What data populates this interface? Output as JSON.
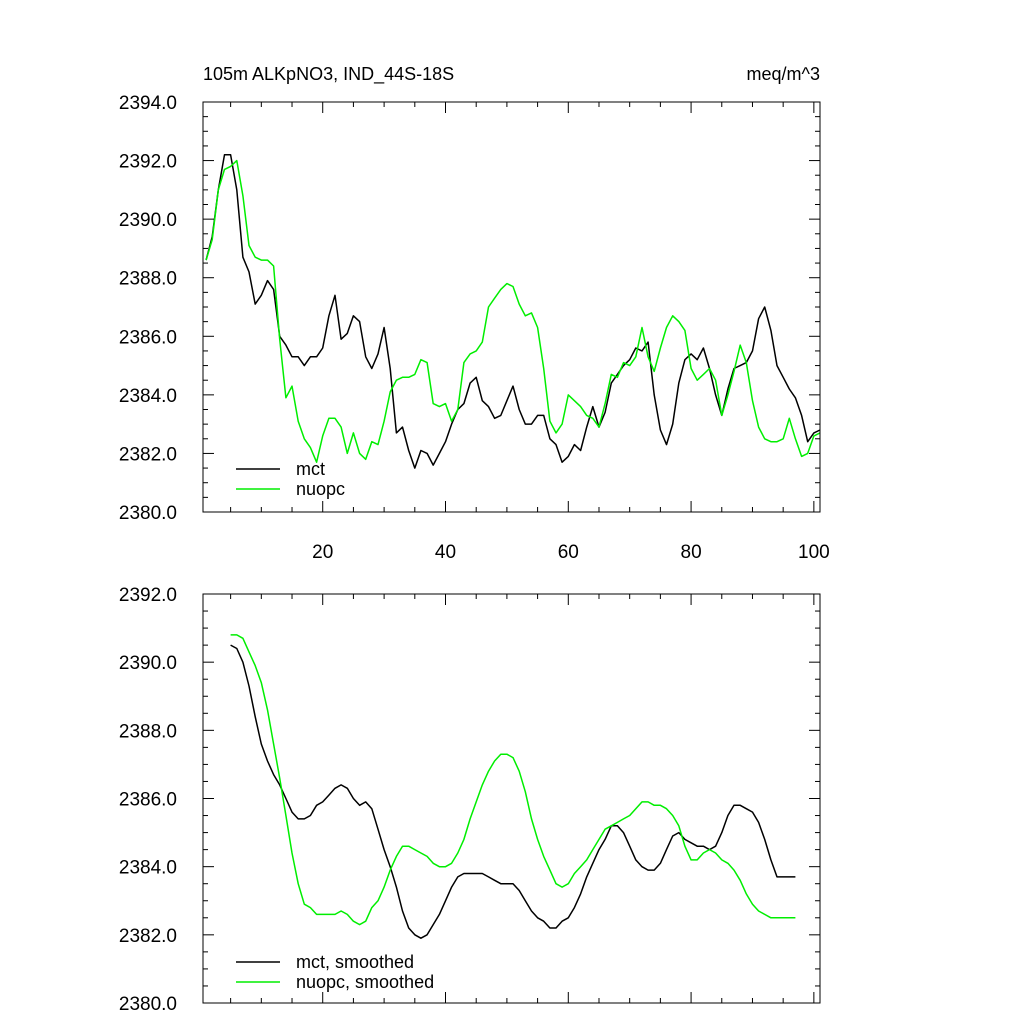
{
  "chart_data": [
    {
      "type": "line",
      "title_left": "105m ALKpNO3, IND_44S-18S",
      "title_right": "meq/m^3",
      "xlabel": "",
      "ylabel": "",
      "xlim": [
        0.5,
        101
      ],
      "ylim": [
        2380,
        2394
      ],
      "yticks": [
        2380,
        2382,
        2384,
        2386,
        2388,
        2390,
        2392,
        2394
      ],
      "ytick_labels": [
        "2380.0",
        "2382.0",
        "2384.0",
        "2386.0",
        "2388.0",
        "2390.0",
        "2392.0",
        "2394.0"
      ],
      "xticks": [
        20,
        40,
        60,
        80,
        100
      ],
      "xtick_labels": [
        "20",
        "40",
        "60",
        "80",
        "100"
      ],
      "legend_position": "bottom-left",
      "series": [
        {
          "name": "mct",
          "color": "#000000",
          "x": [
            1,
            2,
            3,
            4,
            5,
            6,
            7,
            8,
            9,
            10,
            11,
            12,
            13,
            14,
            15,
            16,
            17,
            18,
            19,
            20,
            21,
            22,
            23,
            24,
            25,
            26,
            27,
            28,
            29,
            30,
            31,
            32,
            33,
            34,
            35,
            36,
            37,
            38,
            39,
            40,
            41,
            42,
            43,
            44,
            45,
            46,
            47,
            48,
            49,
            50,
            51,
            52,
            53,
            54,
            55,
            56,
            57,
            58,
            59,
            60,
            61,
            62,
            63,
            64,
            65,
            66,
            67,
            68,
            69,
            70,
            71,
            72,
            73,
            74,
            75,
            76,
            77,
            78,
            79,
            80,
            81,
            82,
            83,
            84,
            85,
            86,
            87,
            88,
            89,
            90,
            91,
            92,
            93,
            94,
            95,
            96,
            97,
            98,
            99,
            100,
            101
          ],
          "values": [
            2388.6,
            2389.4,
            2391.0,
            2392.2,
            2392.2,
            2391.0,
            2388.7,
            2388.2,
            2387.1,
            2387.4,
            2387.9,
            2387.6,
            2386.0,
            2385.7,
            2385.3,
            2385.3,
            2385.0,
            2385.3,
            2385.3,
            2385.6,
            2386.7,
            2387.4,
            2385.9,
            2386.1,
            2386.7,
            2386.5,
            2385.3,
            2384.9,
            2385.4,
            2386.3,
            2384.9,
            2382.7,
            2382.9,
            2382.1,
            2381.5,
            2382.1,
            2382.0,
            2381.6,
            2382.0,
            2382.4,
            2383.0,
            2383.5,
            2383.7,
            2384.4,
            2384.6,
            2383.8,
            2383.6,
            2383.2,
            2383.3,
            2383.8,
            2384.3,
            2383.5,
            2383.0,
            2383.0,
            2383.3,
            2383.3,
            2382.5,
            2382.3,
            2381.7,
            2381.9,
            2382.3,
            2382.1,
            2382.9,
            2383.6,
            2382.9,
            2383.4,
            2384.4,
            2384.7,
            2385.0,
            2385.2,
            2385.6,
            2385.5,
            2385.8,
            2384.0,
            2382.8,
            2382.3,
            2383.0,
            2384.4,
            2385.2,
            2385.4,
            2385.2,
            2385.6,
            2384.9,
            2384.0,
            2383.3,
            2384.2,
            2384.9,
            2385.0,
            2385.1,
            2385.5,
            2386.6,
            2387.0,
            2386.2,
            2385.0,
            2384.6,
            2384.2,
            2383.9,
            2383.3,
            2382.4,
            2382.7,
            2382.8
          ]
        },
        {
          "name": "nuopc",
          "color": "#00ee00",
          "x": [
            1,
            2,
            3,
            4,
            5,
            6,
            7,
            8,
            9,
            10,
            11,
            12,
            13,
            14,
            15,
            16,
            17,
            18,
            19,
            20,
            21,
            22,
            23,
            24,
            25,
            26,
            27,
            28,
            29,
            30,
            31,
            32,
            33,
            34,
            35,
            36,
            37,
            38,
            39,
            40,
            41,
            42,
            43,
            44,
            45,
            46,
            47,
            48,
            49,
            50,
            51,
            52,
            53,
            54,
            55,
            56,
            57,
            58,
            59,
            60,
            61,
            62,
            63,
            64,
            65,
            66,
            67,
            68,
            69,
            70,
            71,
            72,
            73,
            74,
            75,
            76,
            77,
            78,
            79,
            80,
            81,
            82,
            83,
            84,
            85,
            86,
            87,
            88,
            89,
            90,
            91,
            92,
            93,
            94,
            95,
            96,
            97,
            98,
            99,
            100,
            101
          ],
          "values": [
            2388.6,
            2389.3,
            2391.0,
            2391.7,
            2391.8,
            2392.0,
            2390.8,
            2389.1,
            2388.7,
            2388.6,
            2388.6,
            2388.4,
            2385.9,
            2383.9,
            2384.3,
            2383.1,
            2382.5,
            2382.2,
            2381.7,
            2382.6,
            2383.2,
            2383.2,
            2382.9,
            2382.0,
            2382.7,
            2382.0,
            2381.8,
            2382.4,
            2382.3,
            2383.1,
            2384.1,
            2384.5,
            2384.6,
            2384.6,
            2384.7,
            2385.2,
            2385.1,
            2383.7,
            2383.6,
            2383.7,
            2383.1,
            2383.5,
            2385.1,
            2385.4,
            2385.5,
            2385.8,
            2387.0,
            2387.3,
            2387.6,
            2387.8,
            2387.7,
            2387.1,
            2386.7,
            2386.8,
            2386.3,
            2384.9,
            2383.1,
            2382.7,
            2383.0,
            2384.0,
            2383.8,
            2383.6,
            2383.3,
            2383.2,
            2382.9,
            2383.7,
            2384.7,
            2384.6,
            2385.1,
            2385.0,
            2385.3,
            2386.3,
            2385.3,
            2384.8,
            2385.6,
            2386.3,
            2386.7,
            2386.5,
            2386.2,
            2384.9,
            2384.5,
            2384.7,
            2384.9,
            2384.5,
            2383.3,
            2384.0,
            2384.8,
            2385.7,
            2385.1,
            2383.8,
            2382.9,
            2382.5,
            2382.4,
            2382.4,
            2382.5,
            2383.2,
            2382.5,
            2381.9,
            2382.0,
            2382.6,
            2382.7
          ]
        }
      ]
    },
    {
      "type": "line",
      "xlim": [
        0.5,
        101
      ],
      "ylim": [
        2380,
        2392
      ],
      "yticks": [
        2380,
        2382,
        2384,
        2386,
        2388,
        2390,
        2392
      ],
      "ytick_labels": [
        "2380.0",
        "2382.0",
        "2384.0",
        "2386.0",
        "2388.0",
        "2390.0",
        "2392.0"
      ],
      "xticks": [
        20,
        40,
        60,
        80,
        100
      ],
      "legend_position": "bottom-left",
      "series": [
        {
          "name": "mct, smoothed",
          "color": "#000000",
          "x": [
            5,
            6,
            7,
            8,
            9,
            10,
            11,
            12,
            13,
            14,
            15,
            16,
            17,
            18,
            19,
            20,
            21,
            22,
            23,
            24,
            25,
            26,
            27,
            28,
            29,
            30,
            31,
            32,
            33,
            34,
            35,
            36,
            37,
            38,
            39,
            40,
            41,
            42,
            43,
            44,
            45,
            46,
            47,
            48,
            49,
            50,
            51,
            52,
            53,
            54,
            55,
            56,
            57,
            58,
            59,
            60,
            61,
            62,
            63,
            64,
            65,
            66,
            67,
            68,
            69,
            70,
            71,
            72,
            73,
            74,
            75,
            76,
            77,
            78,
            79,
            80,
            81,
            82,
            83,
            84,
            85,
            86,
            87,
            88,
            89,
            90,
            91,
            92,
            93,
            94,
            95,
            96,
            97
          ],
          "values": [
            2390.5,
            2390.4,
            2390.0,
            2389.3,
            2388.4,
            2387.6,
            2387.1,
            2386.7,
            2386.4,
            2386.0,
            2385.6,
            2385.4,
            2385.4,
            2385.5,
            2385.8,
            2385.9,
            2386.1,
            2386.3,
            2386.4,
            2386.3,
            2386.0,
            2385.8,
            2385.9,
            2385.7,
            2385.1,
            2384.5,
            2384.0,
            2383.4,
            2382.7,
            2382.2,
            2382.0,
            2381.9,
            2382.0,
            2382.3,
            2382.6,
            2383.0,
            2383.4,
            2383.7,
            2383.8,
            2383.8,
            2383.8,
            2383.8,
            2383.7,
            2383.6,
            2383.5,
            2383.5,
            2383.5,
            2383.3,
            2383.0,
            2382.7,
            2382.5,
            2382.4,
            2382.2,
            2382.2,
            2382.4,
            2382.5,
            2382.8,
            2383.2,
            2383.7,
            2384.1,
            2384.5,
            2384.8,
            2385.2,
            2385.2,
            2385.0,
            2384.6,
            2384.2,
            2384.0,
            2383.9,
            2383.9,
            2384.1,
            2384.5,
            2384.9,
            2385.0,
            2384.8,
            2384.7,
            2384.6,
            2384.6,
            2384.5,
            2384.6,
            2385.0,
            2385.5,
            2385.8,
            2385.8,
            2385.7,
            2385.6,
            2385.3,
            2384.8,
            2384.2,
            2383.7,
            2383.7,
            2383.7,
            2383.7
          ]
        },
        {
          "name": "nuopc, smoothed",
          "color": "#00ee00",
          "x": [
            5,
            6,
            7,
            8,
            9,
            10,
            11,
            12,
            13,
            14,
            15,
            16,
            17,
            18,
            19,
            20,
            21,
            22,
            23,
            24,
            25,
            26,
            27,
            28,
            29,
            30,
            31,
            32,
            33,
            34,
            35,
            36,
            37,
            38,
            39,
            40,
            41,
            42,
            43,
            44,
            45,
            46,
            47,
            48,
            49,
            50,
            51,
            52,
            53,
            54,
            55,
            56,
            57,
            58,
            59,
            60,
            61,
            62,
            63,
            64,
            65,
            66,
            67,
            68,
            69,
            70,
            71,
            72,
            73,
            74,
            75,
            76,
            77,
            78,
            79,
            80,
            81,
            82,
            83,
            84,
            85,
            86,
            87,
            88,
            89,
            90,
            91,
            92,
            93,
            94,
            95,
            96,
            97
          ],
          "values": [
            2390.8,
            2390.8,
            2390.7,
            2390.3,
            2389.9,
            2389.4,
            2388.6,
            2387.6,
            2386.6,
            2385.5,
            2384.4,
            2383.5,
            2382.9,
            2382.8,
            2382.6,
            2382.6,
            2382.6,
            2382.6,
            2382.7,
            2382.6,
            2382.4,
            2382.3,
            2382.4,
            2382.8,
            2383.0,
            2383.4,
            2383.9,
            2384.3,
            2384.6,
            2384.6,
            2384.5,
            2384.4,
            2384.3,
            2384.1,
            2384.0,
            2384.0,
            2384.1,
            2384.4,
            2384.8,
            2385.4,
            2385.9,
            2386.4,
            2386.8,
            2387.1,
            2387.3,
            2387.3,
            2387.2,
            2386.8,
            2386.2,
            2385.4,
            2384.8,
            2384.3,
            2383.9,
            2383.5,
            2383.4,
            2383.5,
            2383.8,
            2384.0,
            2384.2,
            2384.5,
            2384.8,
            2385.1,
            2385.2,
            2385.3,
            2385.4,
            2385.5,
            2385.7,
            2385.9,
            2385.9,
            2385.8,
            2385.8,
            2385.7,
            2385.5,
            2385.2,
            2384.6,
            2384.2,
            2384.2,
            2384.4,
            2384.5,
            2384.4,
            2384.2,
            2384.1,
            2383.9,
            2383.6,
            2383.2,
            2382.9,
            2382.7,
            2382.6,
            2382.5,
            2382.5,
            2382.5,
            2382.5,
            2382.5
          ]
        }
      ]
    }
  ]
}
